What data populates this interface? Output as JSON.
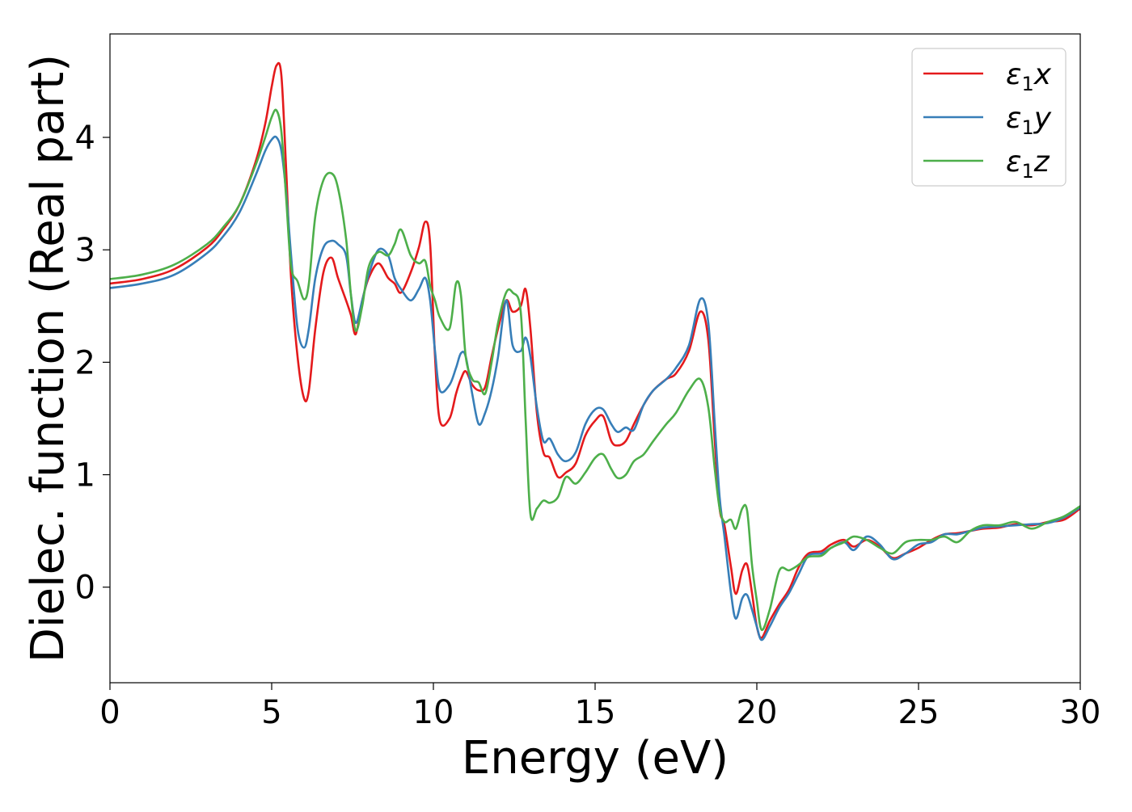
{
  "chart_data": {
    "type": "line",
    "title": "",
    "xlabel": "Energy (eV)",
    "ylabel": "Dielec. function (Real part)",
    "xlim": [
      0,
      30
    ],
    "ylim": [
      -0.85,
      4.92
    ],
    "xticks": [
      0,
      5,
      10,
      15,
      20,
      25,
      30
    ],
    "xtick_labels": [
      "0",
      "5",
      "10",
      "15",
      "20",
      "25",
      "30"
    ],
    "yticks": [
      0,
      1,
      2,
      3,
      4
    ],
    "ytick_labels": [
      "0",
      "1",
      "2",
      "3",
      "4"
    ],
    "grid": false,
    "legend_position": "top-right",
    "series": [
      {
        "symbol": "ε",
        "sub": "1",
        "suffix": "x",
        "color": "#e41a1c",
        "x": [
          0,
          1,
          2,
          3,
          3.5,
          4,
          4.5,
          4.8,
          5.0,
          5.15,
          5.3,
          5.45,
          5.6,
          5.8,
          6.0,
          6.15,
          6.35,
          6.6,
          6.85,
          7.05,
          7.3,
          7.45,
          7.6,
          7.8,
          8.0,
          8.3,
          8.6,
          8.8,
          9.0,
          9.3,
          9.55,
          9.75,
          9.9,
          10.05,
          10.2,
          10.5,
          10.7,
          10.85,
          11.0,
          11.2,
          11.4,
          11.6,
          11.8,
          12.0,
          12.25,
          12.45,
          12.7,
          12.85,
          13.0,
          13.2,
          13.4,
          13.6,
          13.85,
          14.1,
          14.4,
          14.7,
          15.0,
          15.25,
          15.5,
          15.7,
          15.95,
          16.2,
          16.5,
          16.8,
          17.2,
          17.5,
          17.9,
          18.25,
          18.5,
          18.7,
          18.85,
          19.0,
          19.2,
          19.35,
          19.55,
          19.7,
          19.85,
          20.0,
          20.15,
          20.4,
          20.7,
          21.0,
          21.3,
          21.6,
          22.0,
          22.3,
          22.7,
          23.0,
          23.4,
          23.8,
          24.2,
          24.6,
          25.0,
          25.4,
          25.8,
          26.2,
          26.6,
          27.0,
          27.5,
          28.0,
          28.5,
          29.0,
          29.5,
          30.0
        ],
        "y": [
          2.7,
          2.74,
          2.83,
          3.02,
          3.18,
          3.4,
          3.78,
          4.12,
          4.45,
          4.64,
          4.55,
          3.7,
          2.75,
          2.05,
          1.68,
          1.75,
          2.3,
          2.8,
          2.93,
          2.75,
          2.55,
          2.42,
          2.25,
          2.55,
          2.75,
          2.88,
          2.75,
          2.7,
          2.62,
          2.8,
          3.02,
          3.25,
          3.05,
          2.05,
          1.48,
          1.5,
          1.72,
          1.85,
          1.92,
          1.8,
          1.75,
          1.78,
          2.05,
          2.3,
          2.55,
          2.45,
          2.5,
          2.65,
          2.3,
          1.55,
          1.2,
          1.15,
          0.98,
          1.02,
          1.1,
          1.35,
          1.48,
          1.52,
          1.3,
          1.26,
          1.3,
          1.45,
          1.62,
          1.75,
          1.85,
          1.9,
          2.1,
          2.45,
          2.2,
          1.3,
          0.7,
          0.55,
          0.18,
          -0.06,
          0.15,
          0.2,
          -0.05,
          -0.35,
          -0.45,
          -0.3,
          -0.15,
          -0.02,
          0.18,
          0.3,
          0.32,
          0.38,
          0.42,
          0.36,
          0.42,
          0.36,
          0.26,
          0.3,
          0.35,
          0.42,
          0.47,
          0.48,
          0.5,
          0.52,
          0.53,
          0.56,
          0.55,
          0.58,
          0.6,
          0.7
        ]
      },
      {
        "symbol": "ε",
        "sub": "1",
        "suffix": "y",
        "color": "#377eb8",
        "x": [
          0,
          1,
          2,
          3,
          3.5,
          4,
          4.5,
          4.8,
          5.0,
          5.15,
          5.3,
          5.45,
          5.6,
          5.8,
          6.0,
          6.15,
          6.35,
          6.6,
          6.85,
          7.05,
          7.3,
          7.45,
          7.6,
          7.8,
          8.0,
          8.3,
          8.6,
          8.8,
          9.0,
          9.3,
          9.55,
          9.75,
          9.9,
          10.05,
          10.2,
          10.5,
          10.7,
          10.85,
          11.0,
          11.2,
          11.4,
          11.6,
          11.8,
          12.0,
          12.25,
          12.45,
          12.7,
          12.85,
          13.0,
          13.2,
          13.4,
          13.6,
          13.85,
          14.1,
          14.4,
          14.7,
          15.0,
          15.25,
          15.5,
          15.7,
          15.95,
          16.2,
          16.5,
          16.8,
          17.2,
          17.5,
          17.9,
          18.25,
          18.5,
          18.7,
          18.85,
          19.0,
          19.2,
          19.35,
          19.55,
          19.7,
          19.85,
          20.0,
          20.15,
          20.4,
          20.7,
          21.0,
          21.3,
          21.6,
          22.0,
          22.3,
          22.7,
          23.0,
          23.4,
          23.8,
          24.2,
          24.6,
          25.0,
          25.4,
          25.8,
          26.2,
          26.6,
          27.0,
          27.5,
          28.0,
          28.5,
          29.0,
          29.5,
          30.0
        ],
        "y": [
          2.66,
          2.7,
          2.78,
          2.97,
          3.12,
          3.33,
          3.66,
          3.88,
          3.98,
          4.0,
          3.88,
          3.5,
          2.95,
          2.3,
          2.13,
          2.3,
          2.75,
          3.02,
          3.08,
          3.05,
          2.95,
          2.6,
          2.35,
          2.55,
          2.78,
          3.0,
          2.95,
          2.75,
          2.65,
          2.55,
          2.65,
          2.75,
          2.55,
          2.1,
          1.75,
          1.8,
          1.95,
          2.08,
          2.05,
          1.72,
          1.45,
          1.55,
          1.75,
          2.05,
          2.55,
          2.15,
          2.1,
          2.22,
          2.05,
          1.6,
          1.3,
          1.32,
          1.18,
          1.12,
          1.2,
          1.45,
          1.58,
          1.58,
          1.45,
          1.38,
          1.42,
          1.4,
          1.62,
          1.75,
          1.85,
          1.95,
          2.15,
          2.56,
          2.35,
          1.45,
          0.8,
          0.45,
          -0.05,
          -0.28,
          -0.1,
          -0.07,
          -0.2,
          -0.35,
          -0.47,
          -0.35,
          -0.18,
          -0.05,
          0.12,
          0.28,
          0.3,
          0.35,
          0.4,
          0.33,
          0.45,
          0.38,
          0.25,
          0.3,
          0.38,
          0.4,
          0.47,
          0.47,
          0.5,
          0.53,
          0.54,
          0.55,
          0.56,
          0.57,
          0.62,
          0.71
        ]
      },
      {
        "symbol": "ε",
        "sub": "1",
        "suffix": "z",
        "color": "#4daf4a",
        "x": [
          0,
          1,
          2,
          3,
          3.5,
          4,
          4.5,
          4.8,
          5.0,
          5.15,
          5.3,
          5.45,
          5.6,
          5.8,
          6.0,
          6.15,
          6.35,
          6.6,
          6.85,
          7.05,
          7.3,
          7.45,
          7.6,
          7.8,
          8.0,
          8.3,
          8.6,
          8.8,
          9.0,
          9.3,
          9.55,
          9.75,
          9.9,
          10.05,
          10.2,
          10.5,
          10.7,
          10.85,
          11.0,
          11.2,
          11.4,
          11.6,
          11.8,
          12.0,
          12.25,
          12.45,
          12.7,
          12.85,
          13.0,
          13.2,
          13.4,
          13.6,
          13.85,
          14.1,
          14.4,
          14.7,
          15.0,
          15.25,
          15.5,
          15.7,
          15.95,
          16.2,
          16.5,
          16.8,
          17.2,
          17.5,
          17.9,
          18.25,
          18.5,
          18.7,
          18.85,
          19.0,
          19.2,
          19.35,
          19.55,
          19.7,
          19.85,
          20.0,
          20.15,
          20.4,
          20.7,
          21.0,
          21.3,
          21.6,
          22.0,
          22.3,
          22.7,
          23.0,
          23.4,
          23.8,
          24.2,
          24.6,
          25.0,
          25.4,
          25.8,
          26.2,
          26.6,
          27.0,
          27.5,
          28.0,
          28.5,
          29.0,
          29.5,
          30.0
        ],
        "y": [
          2.74,
          2.78,
          2.87,
          3.05,
          3.2,
          3.4,
          3.75,
          4.0,
          4.18,
          4.24,
          4.05,
          3.45,
          2.85,
          2.72,
          2.56,
          2.7,
          3.3,
          3.62,
          3.68,
          3.55,
          3.1,
          2.6,
          2.28,
          2.5,
          2.85,
          2.98,
          2.95,
          3.05,
          3.18,
          2.95,
          2.88,
          2.9,
          2.68,
          2.55,
          2.4,
          2.3,
          2.7,
          2.6,
          2.05,
          1.85,
          1.82,
          1.72,
          2.0,
          2.35,
          2.62,
          2.62,
          2.45,
          1.5,
          0.65,
          0.7,
          0.77,
          0.75,
          0.8,
          0.98,
          0.92,
          1.02,
          1.15,
          1.18,
          1.05,
          0.97,
          1.0,
          1.12,
          1.18,
          1.3,
          1.45,
          1.55,
          1.75,
          1.85,
          1.6,
          1.05,
          0.7,
          0.58,
          0.6,
          0.52,
          0.7,
          0.68,
          0.2,
          -0.12,
          -0.38,
          -0.2,
          0.15,
          0.15,
          0.2,
          0.27,
          0.28,
          0.35,
          0.4,
          0.45,
          0.42,
          0.35,
          0.3,
          0.4,
          0.42,
          0.42,
          0.45,
          0.4,
          0.5,
          0.55,
          0.55,
          0.58,
          0.52,
          0.58,
          0.63,
          0.72
        ]
      }
    ]
  }
}
